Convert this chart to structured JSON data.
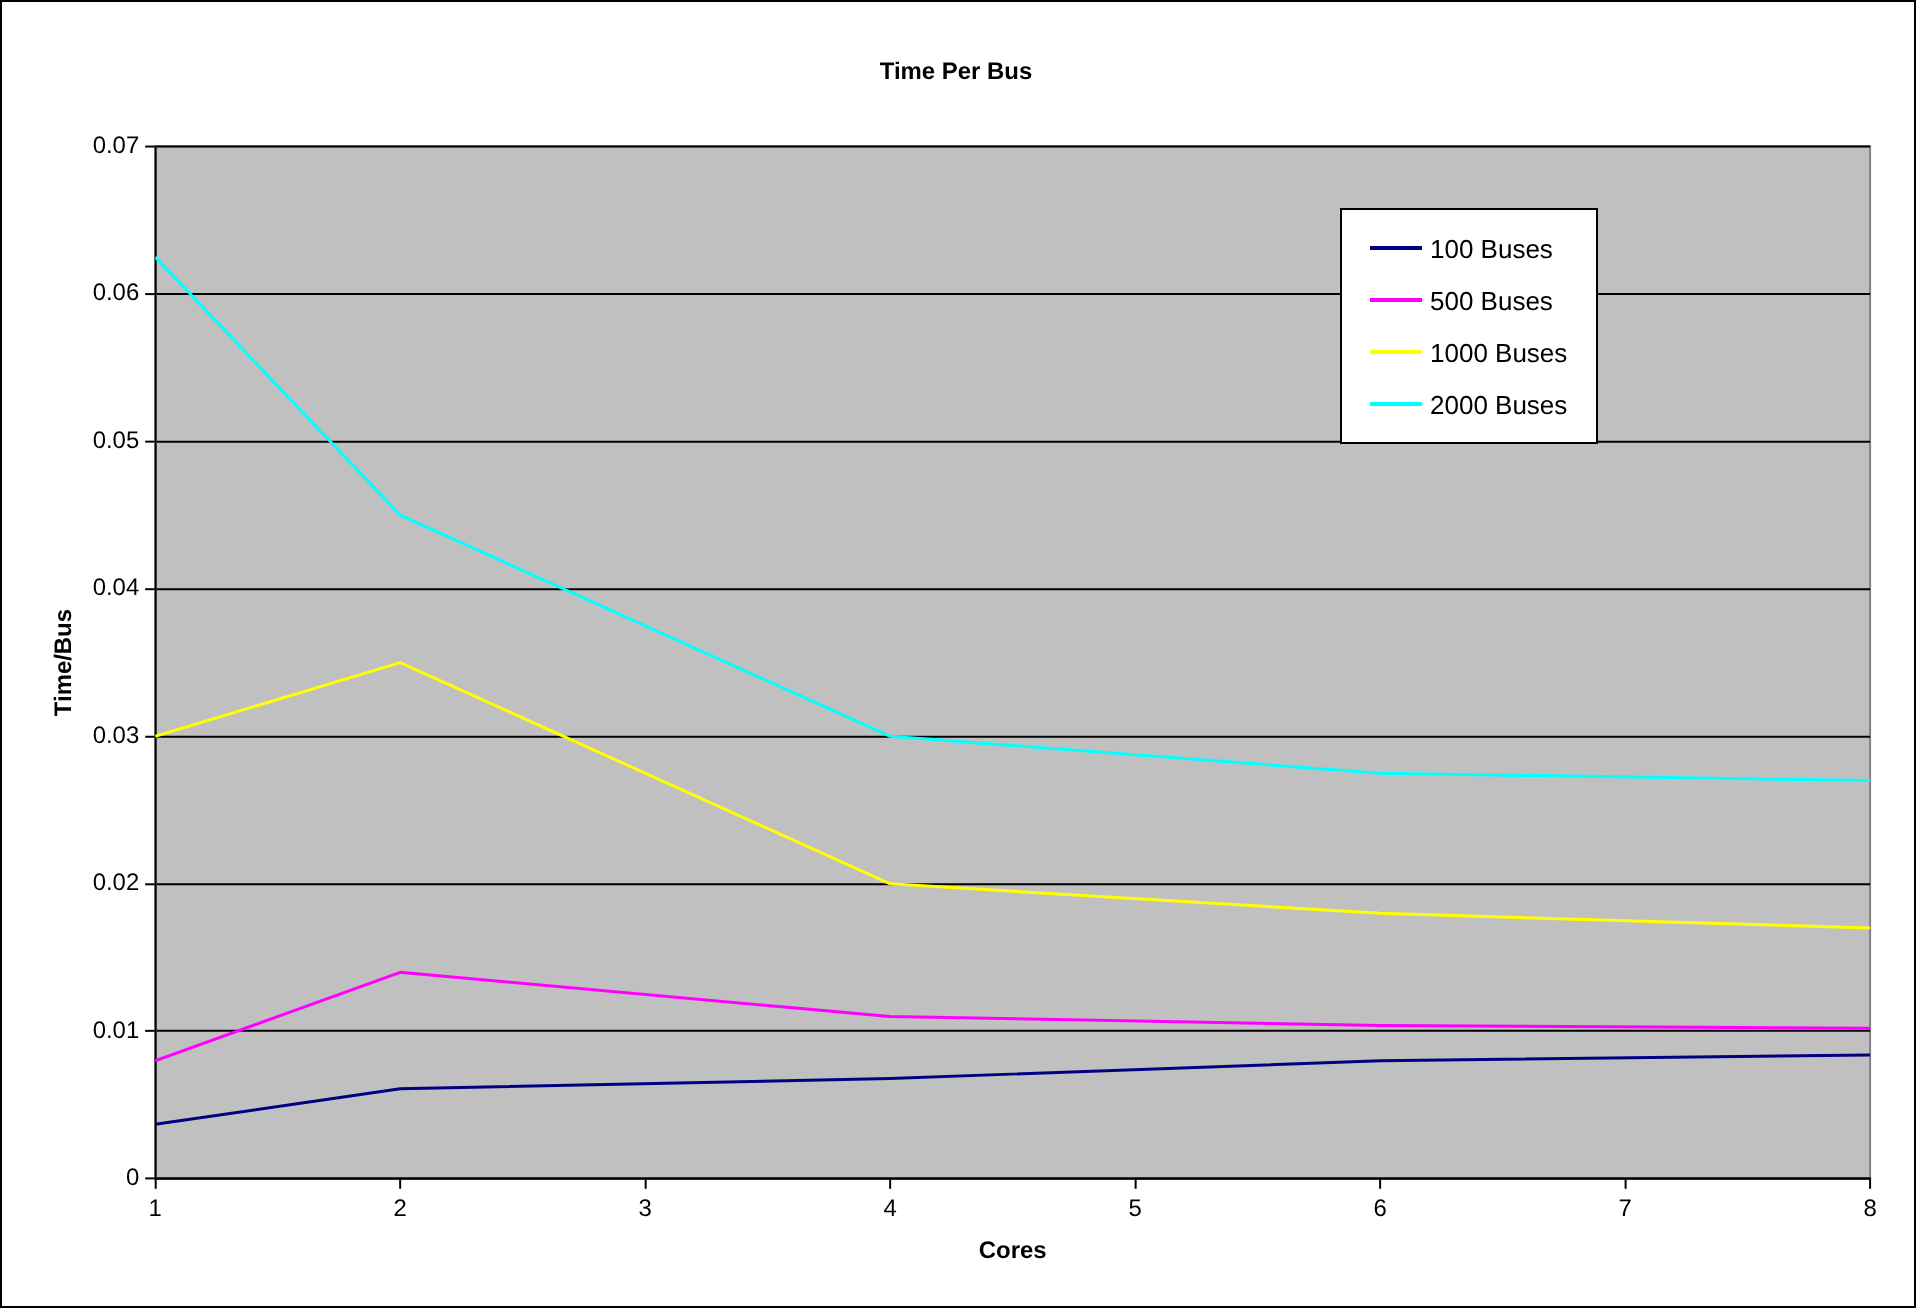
{
  "chart_data": {
    "type": "line",
    "title": "Time Per Bus",
    "xlabel": "Cores",
    "ylabel": "Time/Bus",
    "x": [
      1,
      2,
      4,
      6,
      8
    ],
    "series": [
      {
        "name": "100 Buses",
        "color": "#000080",
        "values": [
          0.0037,
          0.0061,
          0.0068,
          0.008,
          0.0084
        ]
      },
      {
        "name": "500 Buses",
        "color": "#ff00ff",
        "values": [
          0.008,
          0.014,
          0.011,
          0.0104,
          0.0102
        ]
      },
      {
        "name": "1000 Buses",
        "color": "#ffff00",
        "values": [
          0.03,
          0.035,
          0.02,
          0.018,
          0.017
        ]
      },
      {
        "name": "2000 Buses",
        "color": "#00ffff",
        "values": [
          0.0625,
          0.045,
          0.03,
          0.0275,
          0.027
        ]
      }
    ],
    "xlim": [
      1,
      8
    ],
    "xticks": [
      1,
      2,
      3,
      4,
      5,
      6,
      7,
      8
    ],
    "ylim": [
      0,
      0.07
    ],
    "yticks": [
      0,
      0.01,
      0.02,
      0.03,
      0.04,
      0.05,
      0.06,
      0.07
    ],
    "grid": "y",
    "legend": "top right",
    "marker": "none",
    "line_style": "solid"
  }
}
